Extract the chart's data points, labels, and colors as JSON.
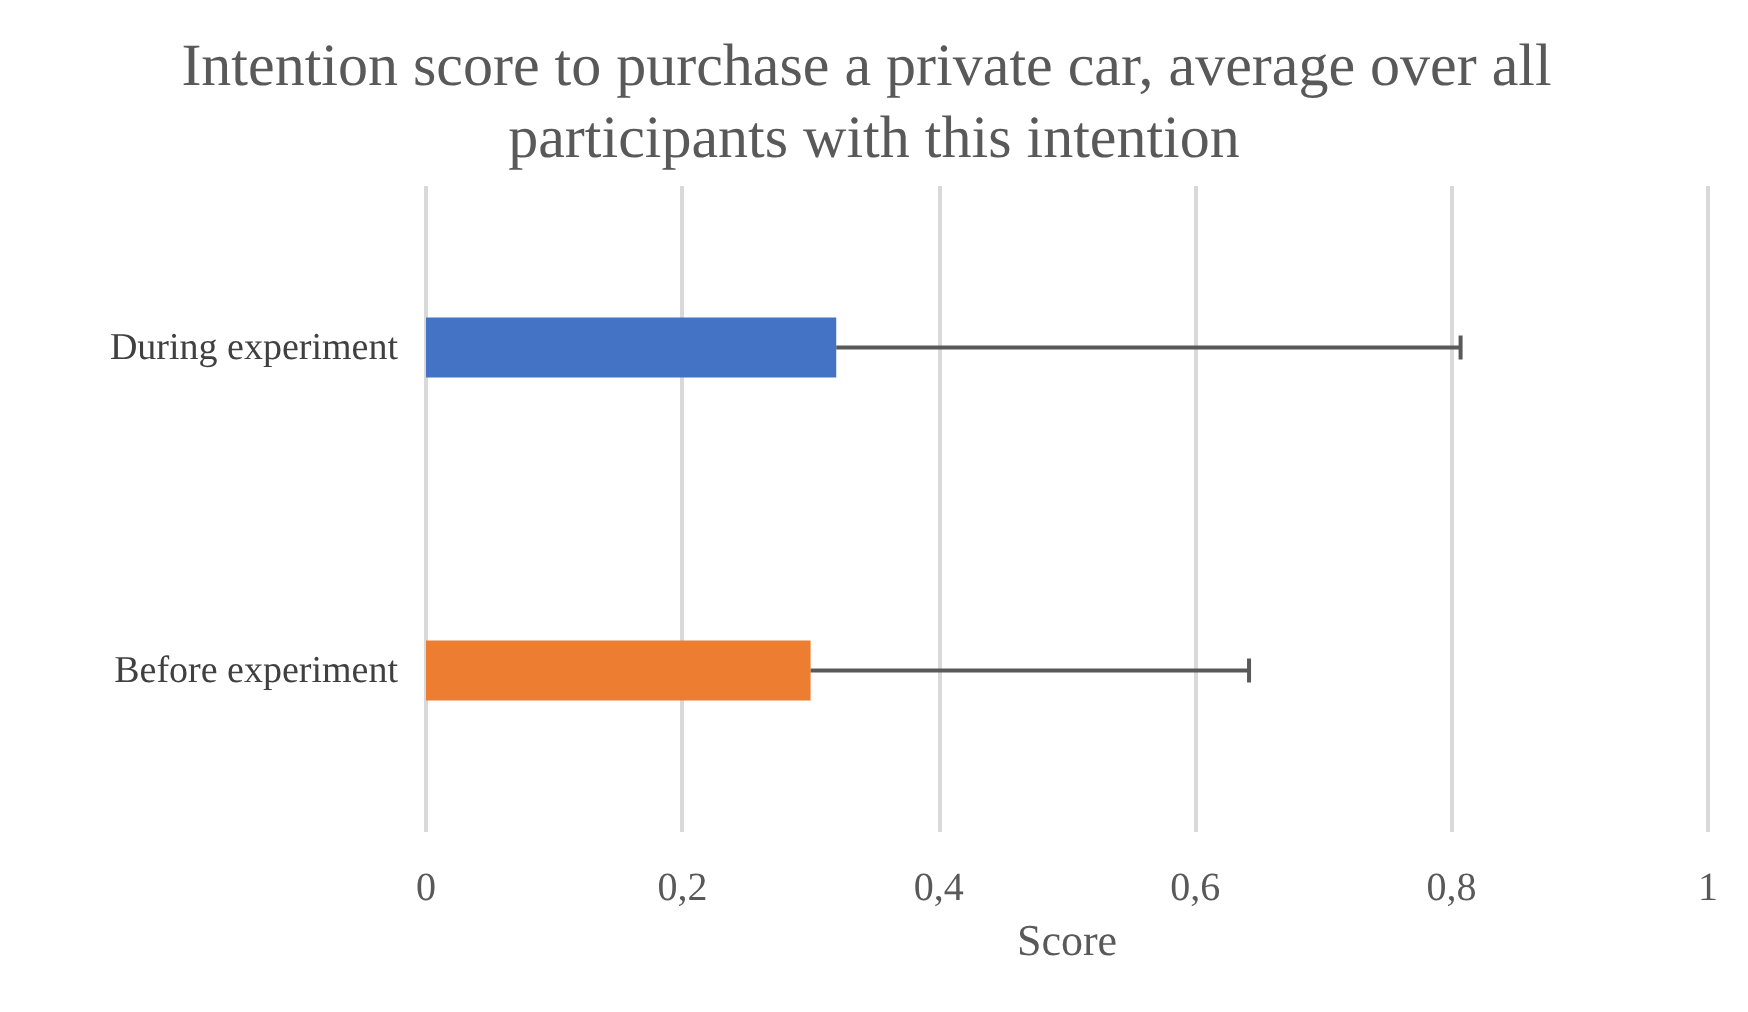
{
  "chart_data": {
    "type": "bar",
    "orientation": "horizontal",
    "title": "Intention score to purchase a private car, average over all participants with this intention",
    "xlabel": "Score",
    "categories": [
      "During experiment",
      "Before experiment"
    ],
    "values": [
      0.32,
      0.3
    ],
    "colors": [
      "#4472c4",
      "#ed7d31"
    ],
    "errors": [
      [
        0.32,
        0.807
      ],
      [
        0.3,
        0.642
      ]
    ],
    "xlim": [
      0,
      1
    ],
    "xticks": [
      0,
      {
        "value": 0.2,
        "label": "0,2"
      },
      {
        "value": 0.4,
        "label": "0,4"
      },
      {
        "value": 0.6,
        "label": "0,6"
      },
      {
        "value": 0.8,
        "label": "0,8"
      },
      1
    ],
    "grid": "x"
  }
}
